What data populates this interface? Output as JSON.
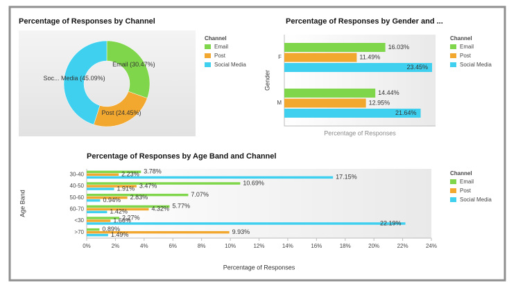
{
  "chart_data": [
    {
      "type": "pie",
      "title": "Percentage of Responses by Channel",
      "donut": true,
      "categories": [
        "Email",
        "Post",
        "Social Media"
      ],
      "values": [
        30.47,
        24.45,
        45.09
      ],
      "value_labels": [
        "Email (30.47%)",
        "Post (24.45%)",
        "Soc... Media (45.09%)"
      ],
      "colors": [
        "#7fd64b",
        "#f2a72e",
        "#3fd0ef"
      ],
      "legend_title": "Channel"
    },
    {
      "type": "bar",
      "orientation": "horizontal",
      "title": "Percentage of Responses by Gender and ...",
      "categories": [
        "F",
        "M"
      ],
      "ylabel": "Gender",
      "xlabel": "Percentage of Responses",
      "xlim": [
        0,
        24
      ],
      "legend_title": "Channel",
      "series": [
        {
          "name": "Email",
          "color": "#7fd64b",
          "values": [
            16.03,
            14.44
          ],
          "value_labels": [
            "16.03%",
            "14.44%"
          ]
        },
        {
          "name": "Post",
          "color": "#f2a72e",
          "values": [
            11.49,
            12.95
          ],
          "value_labels": [
            "11.49%",
            "12.95%"
          ]
        },
        {
          "name": "Social Media",
          "color": "#3fd0ef",
          "values": [
            23.45,
            21.64
          ],
          "value_labels": [
            "23.45%",
            "21.64%"
          ]
        }
      ]
    },
    {
      "type": "bar",
      "orientation": "horizontal",
      "title": "Percentage of Responses by Age Band and Channel",
      "categories": [
        "30-40",
        "40-50",
        "50-60",
        "60-70",
        "<30",
        ">70"
      ],
      "ylabel": "Age Band",
      "xlabel": "Percentage of Responses",
      "xlim": [
        0,
        24
      ],
      "legend_title": "Channel",
      "xticks": [
        {
          "value": 0,
          "label": "0%"
        },
        {
          "value": 2,
          "label": "2%"
        },
        {
          "value": 4,
          "label": "4%"
        },
        {
          "value": 6,
          "label": "6%"
        },
        {
          "value": 8,
          "label": "8%"
        },
        {
          "value": 10,
          "label": "10%"
        },
        {
          "value": 12,
          "label": "12%"
        },
        {
          "value": 14,
          "label": "14%"
        },
        {
          "value": 16,
          "label": "16%"
        },
        {
          "value": 18,
          "label": "18%"
        },
        {
          "value": 20,
          "label": "20%"
        },
        {
          "value": 22,
          "label": "22%"
        },
        {
          "value": 24,
          "label": "24%"
        }
      ],
      "series": [
        {
          "name": "Email",
          "color": "#7fd64b",
          "values": [
            3.78,
            10.69,
            7.07,
            5.77,
            2.27,
            0.89
          ],
          "value_labels": [
            "3.78%",
            "10.69%",
            "7.07%",
            "5.77%",
            "2.27%",
            "0.89%"
          ]
        },
        {
          "name": "Post",
          "color": "#f2a72e",
          "values": [
            2.23,
            3.47,
            2.83,
            4.32,
            1.66,
            9.93
          ],
          "value_labels": [
            "2.23%",
            "3.47%",
            "2.83%",
            "4.32%",
            "1.66%",
            "9.93%"
          ]
        },
        {
          "name": "Social Media",
          "color": "#3fd0ef",
          "values": [
            17.15,
            1.91,
            0.94,
            1.42,
            22.19,
            1.49
          ],
          "value_labels": [
            "17.15%",
            "1.91%",
            "0.94%",
            "1.42%",
            "22.19%",
            "1.49%"
          ]
        }
      ]
    }
  ]
}
